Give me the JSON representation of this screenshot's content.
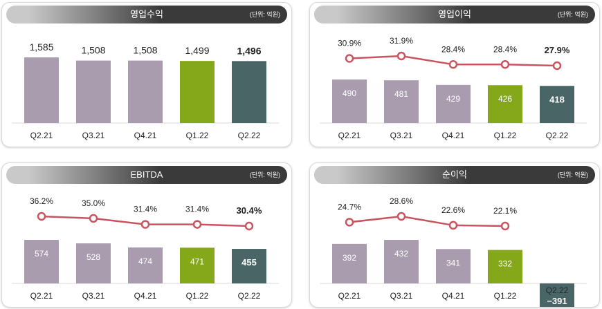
{
  "colors": {
    "bar_gray": "#a89cae",
    "bar_green": "#85a81a",
    "bar_teal": "#4a6566",
    "line": "#c9545f",
    "header_dark": "#3a3a3a",
    "header_light": "#c9c9c9"
  },
  "chart_data": [
    {
      "type": "bar",
      "title": "영업수익",
      "unit": "(단위: 억원)",
      "categories": [
        "Q2.21",
        "Q3.21",
        "Q4.21",
        "Q1.22",
        "Q2.22"
      ],
      "values": [
        1585,
        1508,
        1508,
        1499,
        1496
      ],
      "value_labels": [
        "1,585",
        "1,508",
        "1,508",
        "1,499",
        "1,496"
      ],
      "labels_outside": true
    },
    {
      "type": "bar+line",
      "title": "영업이익",
      "unit": "(단위: 억원)",
      "categories": [
        "Q2.21",
        "Q3.21",
        "Q4.21",
        "Q1.22",
        "Q2.22"
      ],
      "values": [
        490,
        481,
        429,
        426,
        418
      ],
      "value_labels": [
        "490",
        "481",
        "429",
        "426",
        "418"
      ],
      "line_values": [
        30.9,
        31.9,
        28.4,
        28.4,
        27.9
      ],
      "line_labels": [
        "30.9%",
        "31.9%",
        "28.4%",
        "28.4%",
        "27.9%"
      ]
    },
    {
      "type": "bar+line",
      "title": "EBITDA",
      "unit": "(단위: 억원)",
      "categories": [
        "Q2.21",
        "Q3.21",
        "Q4.21",
        "Q1.22",
        "Q2.22"
      ],
      "values": [
        574,
        528,
        474,
        471,
        455
      ],
      "value_labels": [
        "574",
        "528",
        "474",
        "471",
        "455"
      ],
      "line_values": [
        36.2,
        35.0,
        31.4,
        31.4,
        30.4
      ],
      "line_labels": [
        "36.2%",
        "35.0%",
        "31.4%",
        "31.4%",
        "30.4%"
      ]
    },
    {
      "type": "bar+line",
      "title": "순이익",
      "unit": "(단위: 억원)",
      "categories": [
        "Q2.21",
        "Q3.21",
        "Q4.21",
        "Q1.22",
        "Q2.22"
      ],
      "values": [
        392,
        432,
        341,
        332,
        -391
      ],
      "value_labels": [
        "392",
        "432",
        "341",
        "332",
        "−391"
      ],
      "line_values": [
        24.7,
        28.6,
        22.6,
        22.1
      ],
      "line_labels": [
        "24.7%",
        "28.6%",
        "22.6%",
        "22.1%"
      ],
      "negative_last": true
    }
  ]
}
